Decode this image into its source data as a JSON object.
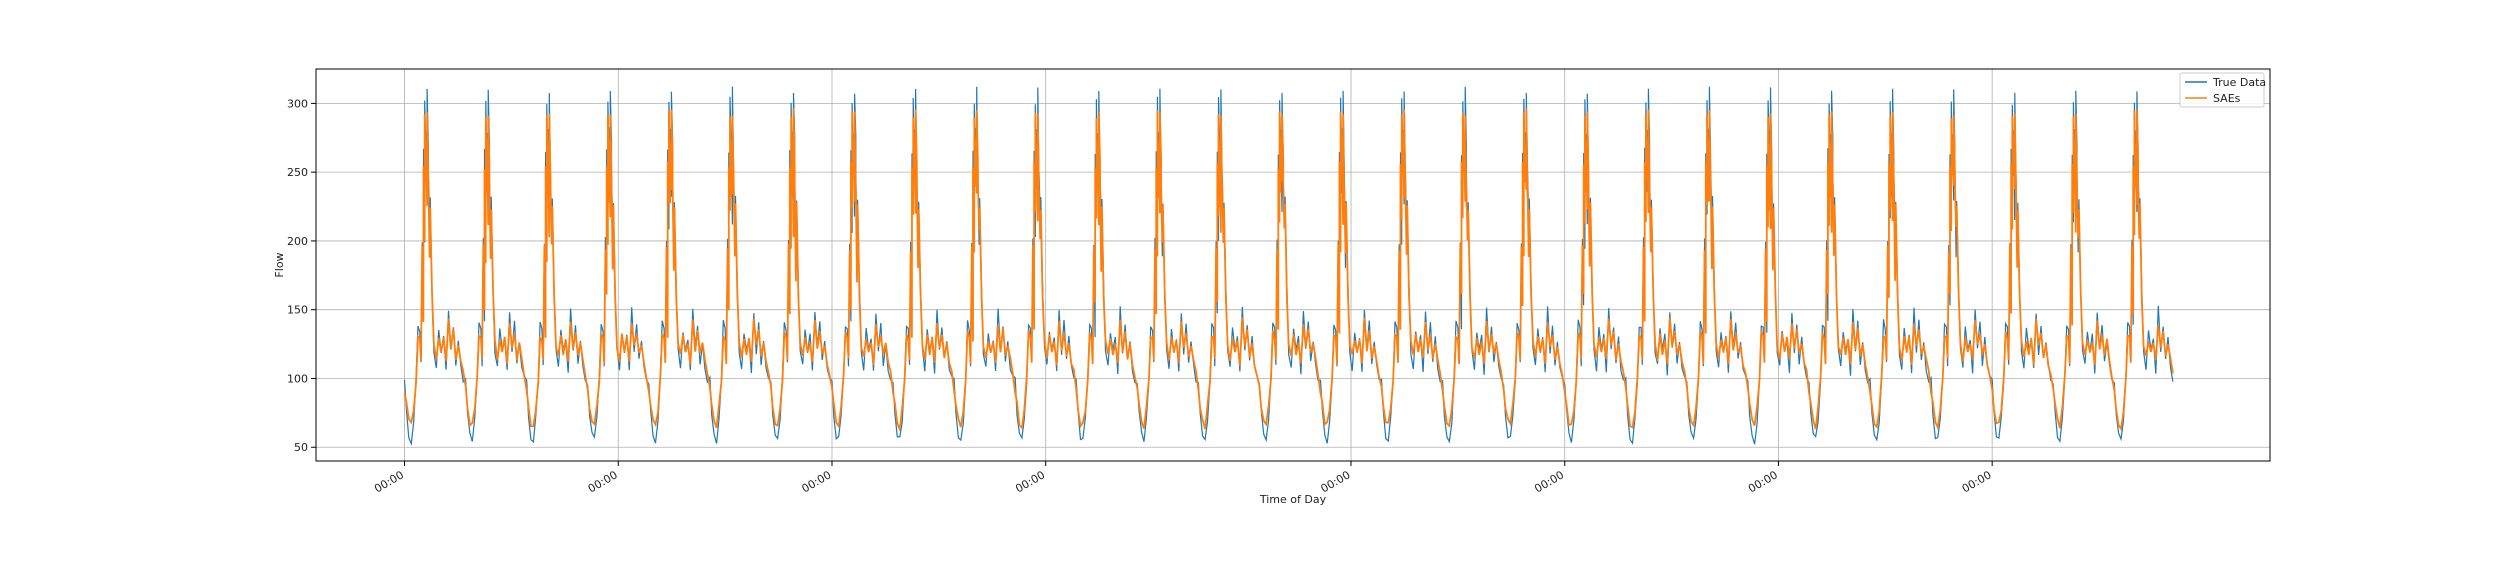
{
  "chart_data": {
    "type": "line",
    "title": "",
    "xlabel": "Time of Day",
    "ylabel": "Flow",
    "ylim": [
      40,
      325
    ],
    "yticks": [
      50,
      100,
      150,
      200,
      250,
      300
    ],
    "xticks": [
      0,
      3.5,
      7,
      10.5,
      15.5,
      19,
      22.5,
      26
    ],
    "xtick_labels": [
      "00:00",
      "00:00",
      "00:00",
      "00:00",
      "00:00",
      "00:00",
      "00:00",
      "00:00"
    ],
    "xlim": [
      -1.45,
      30.55
    ],
    "days": 29,
    "grid": true,
    "legend_position": "top-right",
    "series": [
      {
        "name": "True Data",
        "color": "#1f77b4",
        "daily_profile_time_of_day": [
          0,
          0.03,
          0.07,
          0.11,
          0.15,
          0.19,
          0.22,
          0.25,
          0.27,
          0.29,
          0.31,
          0.33,
          0.35,
          0.37,
          0.39,
          0.42,
          0.45,
          0.48,
          0.52,
          0.56,
          0.6,
          0.64,
          0.68,
          0.72,
          0.76,
          0.8,
          0.84,
          0.88,
          0.92,
          0.96
        ],
        "daily_profile_flow": [
          98,
          75,
          58,
          55,
          70,
          100,
          140,
          135,
          110,
          200,
          265,
          302,
          280,
          310,
          250,
          230,
          165,
          120,
          108,
          135,
          118,
          130,
          105,
          150,
          120,
          140,
          112,
          128,
          108,
          100
        ]
      },
      {
        "name": "SAEs",
        "color": "#ff7f0e",
        "daily_profile_time_of_day": [
          0,
          0.03,
          0.07,
          0.11,
          0.15,
          0.19,
          0.22,
          0.25,
          0.27,
          0.29,
          0.31,
          0.33,
          0.35,
          0.37,
          0.39,
          0.42,
          0.45,
          0.48,
          0.52,
          0.56,
          0.6,
          0.64,
          0.68,
          0.72,
          0.76,
          0.8,
          0.84,
          0.88,
          0.92,
          0.96
        ],
        "daily_profile_flow": [
          92,
          80,
          68,
          66,
          78,
          100,
          132,
          130,
          112,
          195,
          255,
          292,
          272,
          294,
          240,
          225,
          160,
          125,
          115,
          130,
          120,
          128,
          112,
          142,
          122,
          134,
          116,
          126,
          112,
          104
        ]
      }
    ]
  }
}
